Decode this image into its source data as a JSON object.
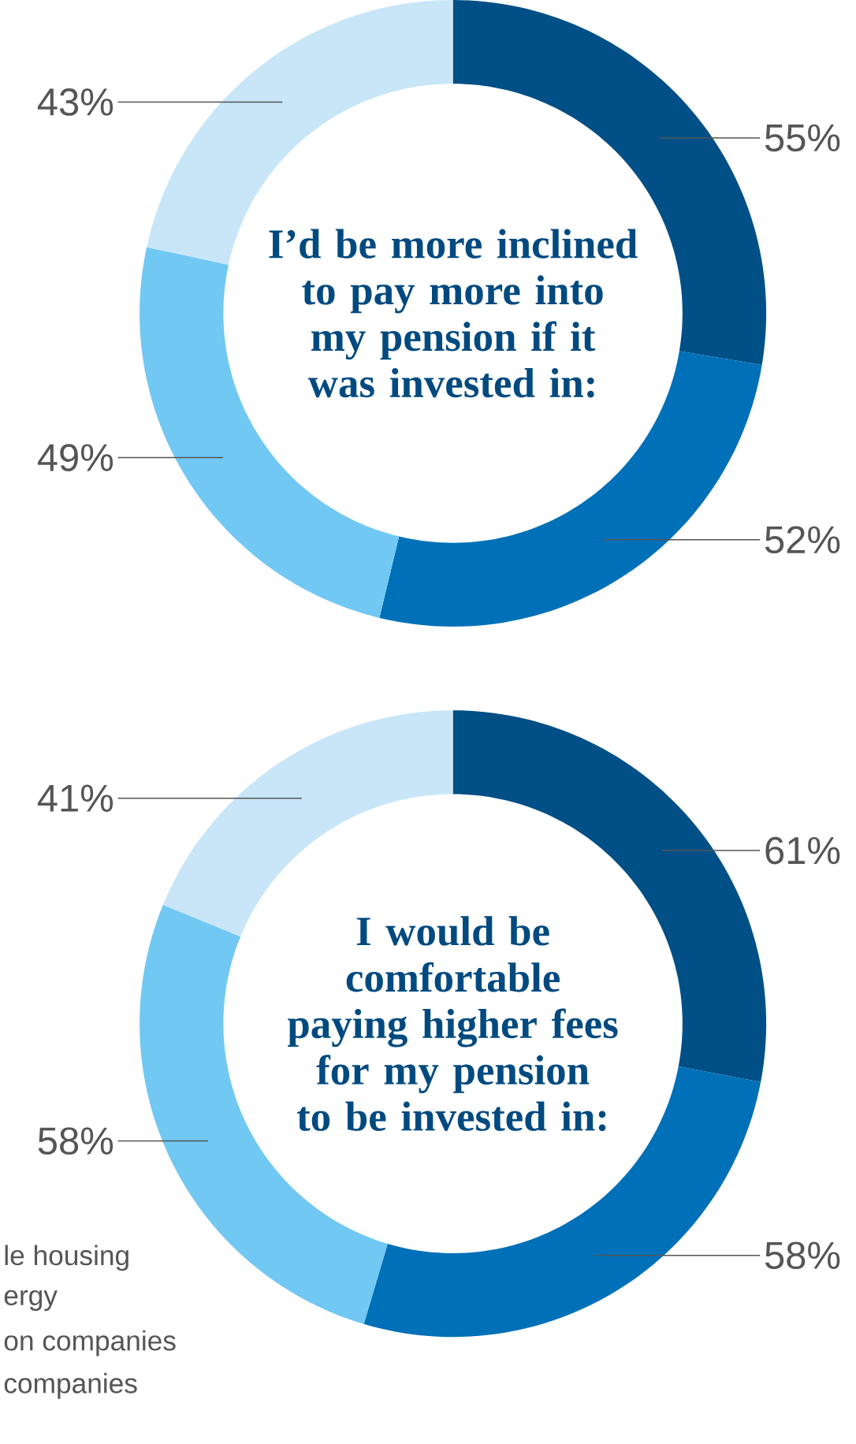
{
  "chart_data": [
    {
      "type": "donut",
      "title": "I’d be more inclined to pay more into my pension if it was invested in:",
      "categories": [
        null,
        null,
        null,
        null
      ],
      "values": [
        55,
        52,
        49,
        43
      ],
      "value_labels": [
        "55%",
        "52%",
        "49%",
        "43%"
      ],
      "colors": [
        "#004f86",
        "#0070b8",
        "#71c8f2",
        "#c8e6f8"
      ]
    },
    {
      "type": "donut",
      "title": "I would be comfortable paying higher fees for my pension to be invested in:",
      "categories": [
        null,
        null,
        null,
        null
      ],
      "values": [
        61,
        58,
        58,
        41
      ],
      "value_labels": [
        "61%",
        "58%",
        "58%",
        "41%"
      ],
      "colors": [
        "#004f86",
        "#0070b8",
        "#71c8f2",
        "#c8e6f8"
      ],
      "annotations": [
        "le housing",
        "ergy",
        "on companies",
        "companies"
      ]
    }
  ]
}
